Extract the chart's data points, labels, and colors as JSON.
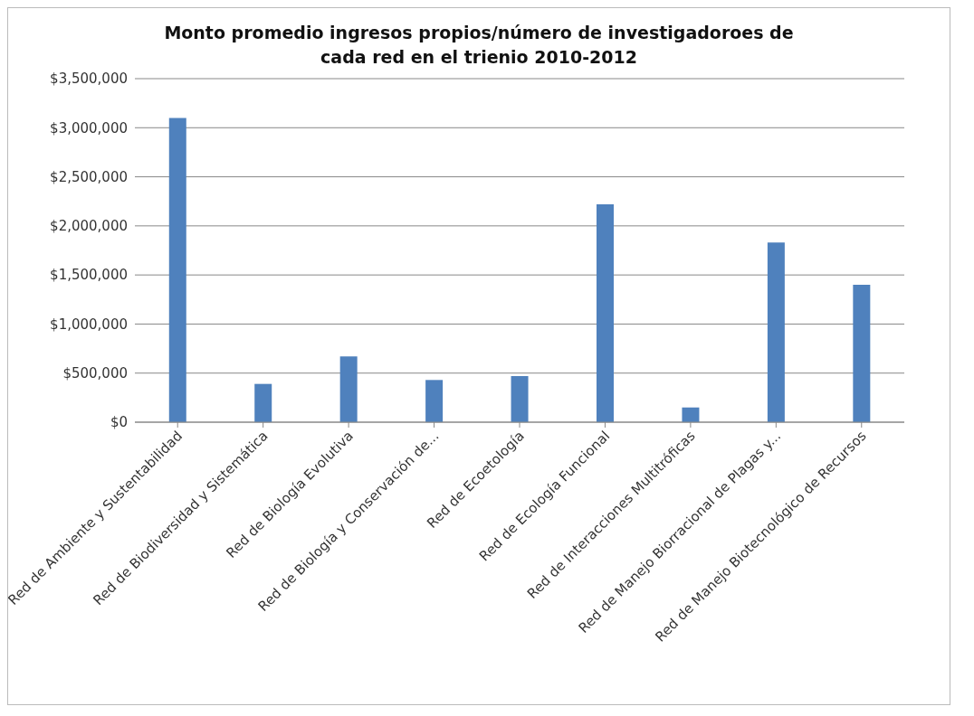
{
  "chart_data": {
    "type": "bar",
    "title": "Monto promedio ingresos propios/número de investigadoroes de cada red en el trienio 2010-2012",
    "categories": [
      "Red de Ambiente y Sustentabilidad",
      "Red de Biodiversidad y Sistemática",
      "Red de Biología Evolutiva",
      "Red de Biología y Conservación de...",
      "Red de Ecoetología",
      "Red de Ecología Funcional",
      "Red de Interacciones Multitróficas",
      "Red de Manejo Biorracional de Plagas y...",
      "Red de Manejo Biotecnológico de Recursos"
    ],
    "values": [
      3100000,
      390000,
      670000,
      430000,
      470000,
      2220000,
      150000,
      1830000,
      1400000
    ],
    "color": "#4f81bd",
    "ylim": [
      0,
      3500000
    ],
    "yticks": [
      {
        "value": 0,
        "label": "$0"
      },
      {
        "value": 500000,
        "label": "$500,000"
      },
      {
        "value": 1000000,
        "label": "$1,000,000"
      },
      {
        "value": 1500000,
        "label": "$1,500,000"
      },
      {
        "value": 2000000,
        "label": "$2,000,000"
      },
      {
        "value": 2500000,
        "label": "$2,500,000"
      },
      {
        "value": 3000000,
        "label": "$3,000,000"
      },
      {
        "value": 3500000,
        "label": "$3,500,000"
      }
    ],
    "grid": "y",
    "legend": false
  }
}
